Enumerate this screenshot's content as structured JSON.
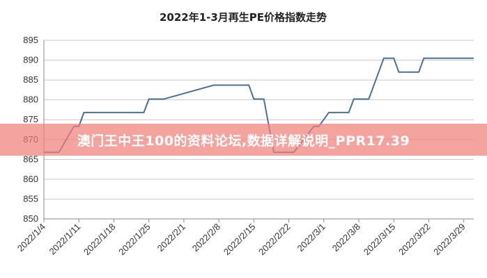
{
  "banner": {
    "text": "澳门王中王100的资料论坛,数据详解说明_PPR17.39",
    "color": "#f08078"
  },
  "chart_data": {
    "type": "line",
    "title": "2022年1-3月再生PE价格指数走势",
    "xlabel": "",
    "ylabel": "",
    "ylim": [
      850,
      895
    ],
    "yticks": [
      850,
      855,
      860,
      865,
      870,
      875,
      880,
      885,
      890,
      895
    ],
    "xticks": [
      "2022/1/4",
      "2022/1/11",
      "2022/1/18",
      "2022/1/25",
      "2022/2/1",
      "2022/2/8",
      "2022/2/15",
      "2022/2/22",
      "2022/3/1",
      "2022/3/8",
      "2022/3/15",
      "2022/3/22",
      "2022/3/29"
    ],
    "x_range": [
      "2022/1/4",
      "2022/3/31"
    ],
    "grid": "horizontal",
    "legend": "none",
    "line_color": "#4a6f9a",
    "series": [
      {
        "x": [
          "2022/1/4",
          "2022/1/7",
          "2022/1/10",
          "2022/1/11",
          "2022/1/12",
          "2022/1/19",
          "2022/1/24",
          "2022/1/25",
          "2022/1/28",
          "2022/2/7",
          "2022/2/14",
          "2022/2/15",
          "2022/2/17",
          "2022/2/19",
          "2022/2/21",
          "2022/2/23",
          "2022/2/27",
          "2022/2/28",
          "2022/3/2",
          "2022/3/6",
          "2022/3/7",
          "2022/3/10",
          "2022/3/13",
          "2022/3/15",
          "2022/3/16",
          "2022/3/20",
          "2022/3/21",
          "2022/3/31"
        ],
        "values": [
          866.8,
          866.8,
          873.3,
          873.3,
          876.8,
          876.8,
          876.8,
          880.2,
          880.2,
          883.7,
          883.7,
          880.2,
          880.2,
          866.8,
          866.8,
          866.8,
          873.3,
          873.3,
          876.8,
          876.8,
          880.2,
          880.2,
          890.5,
          890.5,
          887.0,
          887.0,
          890.5,
          890.5
        ]
      }
    ]
  }
}
